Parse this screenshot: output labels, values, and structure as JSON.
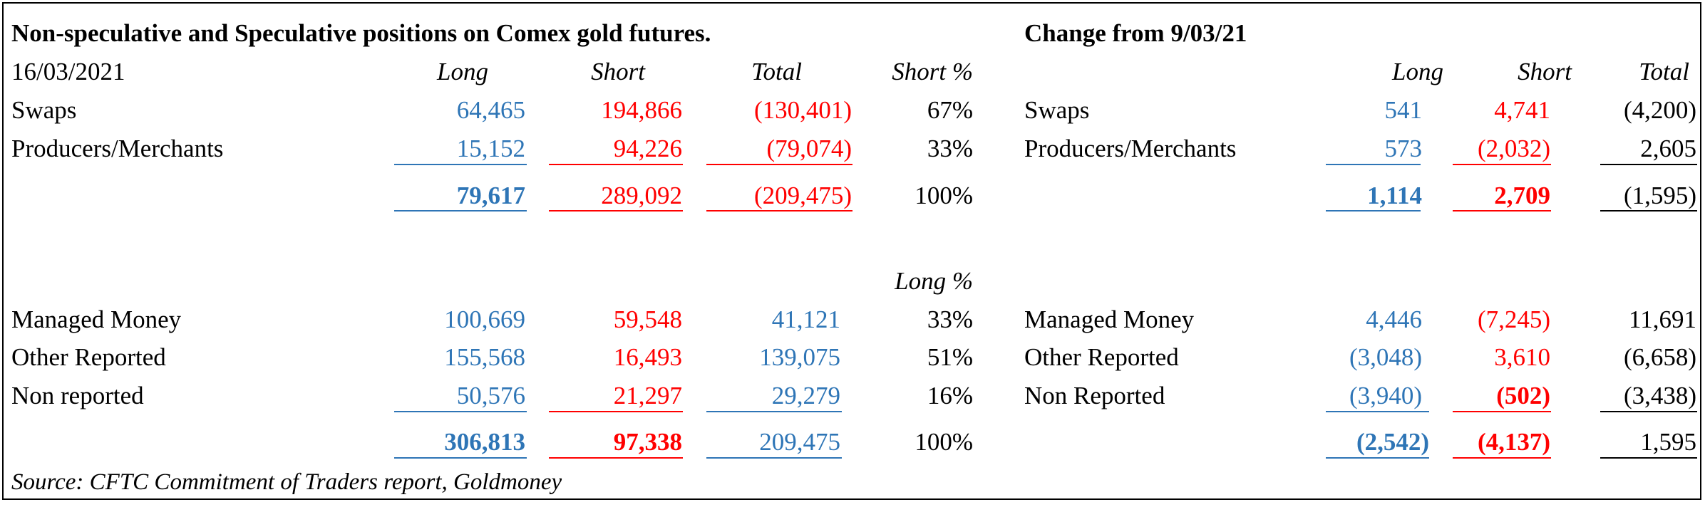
{
  "title": "Non-speculative and Speculative positions on Comex gold futures.",
  "change_title": "Change from 9/03/21",
  "date": "16/03/2021",
  "headers": {
    "long": "Long",
    "short": "Short",
    "total": "Total",
    "short_pct": "Short %",
    "long_pct": "Long %"
  },
  "section1": {
    "rows": [
      {
        "label": "Swaps",
        "long": "64,465",
        "short": "194,866",
        "total": "(130,401)",
        "pct": "67%"
      },
      {
        "label": "Producers/Merchants",
        "long": "15,152",
        "short": "94,226",
        "total": "(79,074)",
        "pct": "33%"
      }
    ],
    "totals": {
      "long": "79,617",
      "short": "289,092",
      "total": "(209,475)",
      "pct": "100%"
    }
  },
  "section1_change": {
    "rows": [
      {
        "label": "Swaps",
        "long": "541",
        "short": "4,741",
        "total": "(4,200)"
      },
      {
        "label": "Producers/Merchants",
        "long": "573",
        "short": "(2,032)",
        "total": "2,605"
      }
    ],
    "totals": {
      "long": "1,114",
      "short": "2,709",
      "total": "(1,595)"
    }
  },
  "section2": {
    "rows": [
      {
        "label": "Managed Money",
        "long": "100,669",
        "short": "59,548",
        "total": "41,121",
        "pct": "33%"
      },
      {
        "label": "Other Reported",
        "long": "155,568",
        "short": "16,493",
        "total": "139,075",
        "pct": "51%"
      },
      {
        "label": "Non reported",
        "long": "50,576",
        "short": "21,297",
        "total": "29,279",
        "pct": "16%"
      }
    ],
    "totals": {
      "long": "306,813",
      "short": "97,338",
      "total": "209,475",
      "pct": "100%"
    }
  },
  "section2_change": {
    "rows": [
      {
        "label": "Managed Money",
        "long": "4,446",
        "short": "(7,245)",
        "total": "11,691"
      },
      {
        "label": "Other Reported",
        "long": "(3,048)",
        "short": "3,610",
        "total": "(6,658)"
      },
      {
        "label": "Non Reported",
        "long": "(3,940)",
        "short": "(502)",
        "total": "(3,438)"
      }
    ],
    "totals": {
      "long": "(2,542)",
      "short": "(4,137)",
      "total": "1,595"
    }
  },
  "source": "Source: CFTC Commitment of Traders report, Goldmoney",
  "colors": {
    "long": "#2e75b6",
    "short": "#ff0000",
    "text": "#000000",
    "border": "#000000"
  }
}
